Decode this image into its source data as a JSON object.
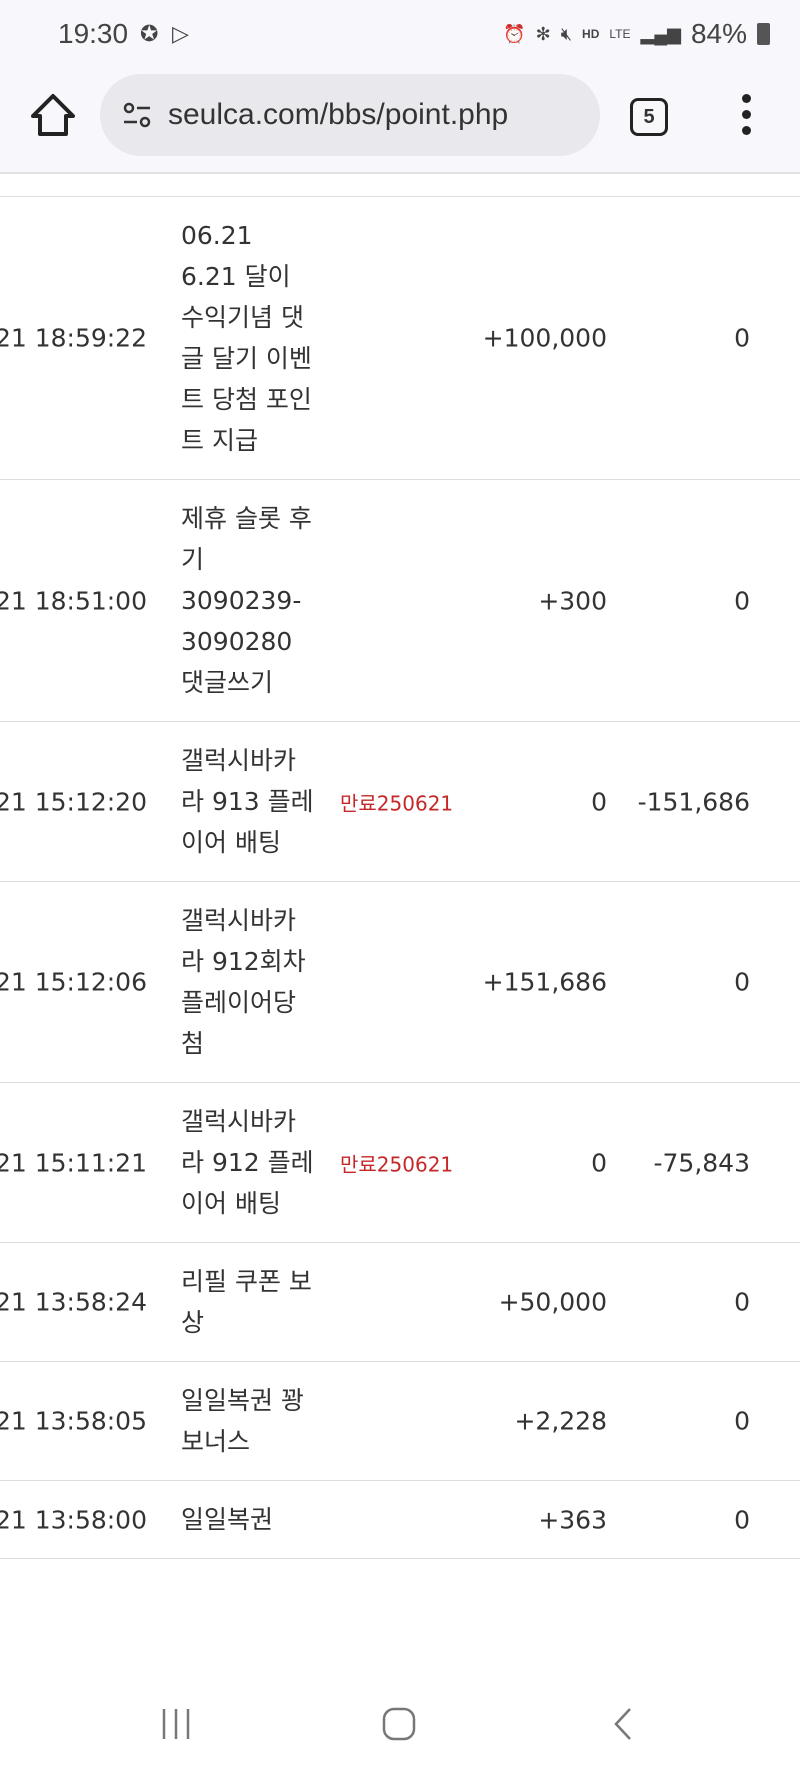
{
  "status_bar": {
    "time": "19:30",
    "battery": "84%",
    "icons": [
      "v-badge-icon",
      "play-store-icon",
      "alarm-icon",
      "bluetooth-icon",
      "mute-icon",
      "hd-voice-icon",
      "lte-icon",
      "signal-icon",
      "battery-icon"
    ],
    "hd_label": "HD",
    "lte_label": "LTE"
  },
  "browser": {
    "url": "seulca.com/bbs/point.php",
    "tab_count": "5"
  },
  "colors": {
    "expire": "#c62828"
  },
  "rows": [
    {
      "datetime": "21 18:59:22",
      "desc": "06.21 6.21 달이 수익기념 댓글 달기 이벤트 당첨 포인트 지급",
      "expire": "",
      "plus": "+100,000",
      "minus": "0"
    },
    {
      "datetime": "21 18:51:00",
      "desc": "제휴 슬롯 후기 3090239-3090280 댓글쓰기",
      "expire": "",
      "plus": "+300",
      "minus": "0"
    },
    {
      "datetime": "21 15:12:20",
      "desc": "갤럭시바카라 913 플레이어 배팅",
      "expire": "만료250621",
      "plus": "0",
      "minus": "-151,686"
    },
    {
      "datetime": "21 15:12:06",
      "desc": "갤럭시바카라 912회차 플레이어당첨",
      "expire": "",
      "plus": "+151,686",
      "minus": "0"
    },
    {
      "datetime": "21 15:11:21",
      "desc": "갤럭시바카라 912 플레이어 배팅",
      "expire": "만료250621",
      "plus": "0",
      "minus": "-75,843"
    },
    {
      "datetime": "21 13:58:24",
      "desc": "리필 쿠폰 보상",
      "expire": "",
      "plus": "+50,000",
      "minus": "0"
    },
    {
      "datetime": "21 13:58:05",
      "desc": "일일복권 꽝 보너스",
      "expire": "",
      "plus": "+2,228",
      "minus": "0"
    },
    {
      "datetime": "21 13:58:00",
      "desc": "일일복권",
      "expire": "",
      "plus": "+363",
      "minus": "0"
    }
  ]
}
